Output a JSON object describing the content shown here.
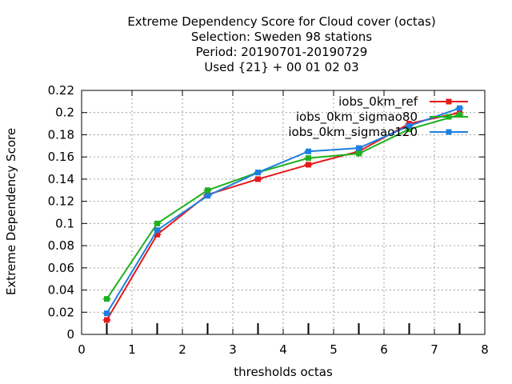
{
  "chart_data": {
    "type": "line",
    "title_lines": [
      "Extreme Dependency Score  for Cloud cover (octas)",
      "Selection: Sweden     98 stations",
      "Period: 20190701-20190729",
      "Used {21} + 00 01 02 03"
    ],
    "xlabel": "thresholds octas",
    "ylabel": "Extreme Dependency Score",
    "xlim": [
      0,
      8
    ],
    "ylim": [
      0,
      0.22
    ],
    "xticks": [
      "0",
      "1",
      "2",
      "3",
      "4",
      "5",
      "6",
      "7",
      "8"
    ],
    "yticks": [
      "0",
      "0.02",
      "0.04",
      "0.06",
      "0.08",
      "0.1",
      "0.12",
      "0.14",
      "0.16",
      "0.18",
      "0.2",
      "0.22"
    ],
    "grid": true,
    "legend_position": "top-right",
    "x": [
      0.5,
      1.5,
      2.5,
      3.5,
      4.5,
      5.5,
      6.5,
      7.5
    ],
    "series": [
      {
        "name": "iobs_0km_ref",
        "color": "#e41a1c",
        "values": [
          0.013,
          0.09,
          0.126,
          0.14,
          0.153,
          0.165,
          0.19,
          0.2
        ]
      },
      {
        "name": "iobs_0km_sigmao80",
        "color": "#1fb11f",
        "values": [
          0.032,
          0.1,
          0.13,
          0.146,
          0.159,
          0.163,
          0.185,
          0.198
        ]
      },
      {
        "name": "iobs_0km_sigmao120",
        "color": "#1e7fe0",
        "values": [
          0.019,
          0.094,
          0.125,
          0.146,
          0.165,
          0.168,
          0.188,
          0.204
        ]
      }
    ]
  }
}
